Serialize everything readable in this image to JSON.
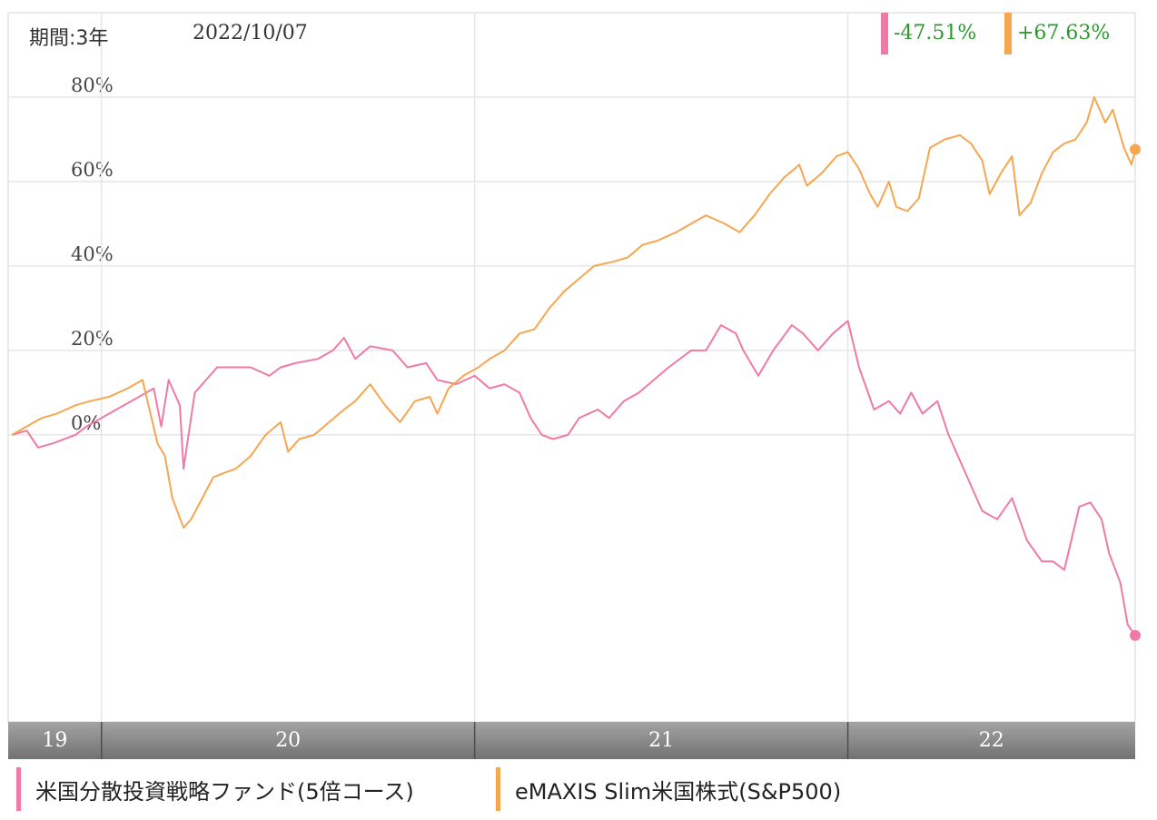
{
  "header": {
    "period": "期間:3年",
    "date": "2022/10/07"
  },
  "changes": [
    {
      "label": "-47.51%",
      "color": "#f07aa6"
    },
    {
      "label": "+67.63%",
      "color": "#f7a650"
    }
  ],
  "legend": [
    {
      "label": "米国分散投資戦略ファンド(5倍コース)",
      "color": "#f07aa6"
    },
    {
      "label": "eMAXIS Slim米国株式(S&P500)",
      "color": "#f7a650"
    }
  ],
  "chart_data": {
    "type": "line",
    "title": "",
    "xlabel": "",
    "ylabel": "",
    "x_range": [
      2019.75,
      2022.77
    ],
    "ylim": [
      -68,
      100
    ],
    "y_ticks": [
      {
        "value": 80,
        "label": "80%"
      },
      {
        "value": 60,
        "label": "60%"
      },
      {
        "value": 40,
        "label": "40%"
      },
      {
        "value": 20,
        "label": "20%"
      },
      {
        "value": 0,
        "label": "0%"
      }
    ],
    "x_bands": [
      {
        "label": "19",
        "from": 2019.75,
        "to": 2020.0
      },
      {
        "label": "20",
        "from": 2020.0,
        "to": 2021.0
      },
      {
        "label": "21",
        "from": 2021.0,
        "to": 2022.0
      },
      {
        "label": "22",
        "from": 2022.0,
        "to": 2022.77
      }
    ],
    "grid": true,
    "series": [
      {
        "name": "米国分散投資戦略ファンド(5倍コース)",
        "color": "#f07aa6",
        "points": [
          [
            2019.76,
            0
          ],
          [
            2019.8,
            1
          ],
          [
            2019.83,
            -3
          ],
          [
            2019.87,
            -2
          ],
          [
            2019.93,
            0
          ],
          [
            2019.96,
            2
          ],
          [
            2020.02,
            5
          ],
          [
            2020.08,
            8
          ],
          [
            2020.14,
            11
          ],
          [
            2020.16,
            2
          ],
          [
            2020.18,
            13
          ],
          [
            2020.21,
            7
          ],
          [
            2020.22,
            -8
          ],
          [
            2020.25,
            10
          ],
          [
            2020.31,
            16
          ],
          [
            2020.35,
            16
          ],
          [
            2020.4,
            16
          ],
          [
            2020.45,
            14
          ],
          [
            2020.48,
            16
          ],
          [
            2020.52,
            17
          ],
          [
            2020.58,
            18
          ],
          [
            2020.62,
            20
          ],
          [
            2020.65,
            23
          ],
          [
            2020.68,
            18
          ],
          [
            2020.72,
            21
          ],
          [
            2020.78,
            20
          ],
          [
            2020.82,
            16
          ],
          [
            2020.87,
            17
          ],
          [
            2020.9,
            13
          ],
          [
            2020.95,
            12
          ],
          [
            2021.0,
            14
          ],
          [
            2021.04,
            11
          ],
          [
            2021.08,
            12
          ],
          [
            2021.12,
            10
          ],
          [
            2021.15,
            4
          ],
          [
            2021.18,
            0
          ],
          [
            2021.21,
            -1
          ],
          [
            2021.25,
            0
          ],
          [
            2021.28,
            4
          ],
          [
            2021.33,
            6
          ],
          [
            2021.36,
            4
          ],
          [
            2021.4,
            8
          ],
          [
            2021.44,
            10
          ],
          [
            2021.48,
            13
          ],
          [
            2021.52,
            16
          ],
          [
            2021.58,
            20
          ],
          [
            2021.62,
            20
          ],
          [
            2021.66,
            26
          ],
          [
            2021.7,
            24
          ],
          [
            2021.72,
            20
          ],
          [
            2021.76,
            14
          ],
          [
            2021.8,
            20
          ],
          [
            2021.85,
            26
          ],
          [
            2021.88,
            24
          ],
          [
            2021.92,
            20
          ],
          [
            2021.96,
            24
          ],
          [
            2022.0,
            27
          ],
          [
            2022.03,
            16
          ],
          [
            2022.07,
            6
          ],
          [
            2022.11,
            8
          ],
          [
            2022.14,
            5
          ],
          [
            2022.17,
            10
          ],
          [
            2022.2,
            5
          ],
          [
            2022.24,
            8
          ],
          [
            2022.27,
            0
          ],
          [
            2022.32,
            -10
          ],
          [
            2022.36,
            -18
          ],
          [
            2022.4,
            -20
          ],
          [
            2022.44,
            -15
          ],
          [
            2022.48,
            -25
          ],
          [
            2022.52,
            -30
          ],
          [
            2022.55,
            -30
          ],
          [
            2022.58,
            -32
          ],
          [
            2022.62,
            -17
          ],
          [
            2022.65,
            -16
          ],
          [
            2022.68,
            -20
          ],
          [
            2022.7,
            -28
          ],
          [
            2022.73,
            -35
          ],
          [
            2022.75,
            -45
          ],
          [
            2022.77,
            -47.51
          ]
        ]
      },
      {
        "name": "eMAXIS Slim米国株式(S&P500)",
        "color": "#f7a650",
        "points": [
          [
            2019.76,
            0
          ],
          [
            2019.8,
            2
          ],
          [
            2019.84,
            4
          ],
          [
            2019.88,
            5
          ],
          [
            2019.93,
            7
          ],
          [
            2019.97,
            8
          ],
          [
            2020.02,
            9
          ],
          [
            2020.07,
            11
          ],
          [
            2020.11,
            13
          ],
          [
            2020.15,
            -2
          ],
          [
            2020.17,
            -5
          ],
          [
            2020.19,
            -15
          ],
          [
            2020.22,
            -22
          ],
          [
            2020.24,
            -20
          ],
          [
            2020.27,
            -15
          ],
          [
            2020.3,
            -10
          ],
          [
            2020.33,
            -9
          ],
          [
            2020.36,
            -8
          ],
          [
            2020.4,
            -5
          ],
          [
            2020.44,
            0
          ],
          [
            2020.48,
            3
          ],
          [
            2020.5,
            -4
          ],
          [
            2020.53,
            -1
          ],
          [
            2020.57,
            0
          ],
          [
            2020.61,
            3
          ],
          [
            2020.65,
            6
          ],
          [
            2020.68,
            8
          ],
          [
            2020.72,
            12
          ],
          [
            2020.76,
            7
          ],
          [
            2020.8,
            3
          ],
          [
            2020.84,
            8
          ],
          [
            2020.88,
            9
          ],
          [
            2020.9,
            5
          ],
          [
            2020.93,
            11
          ],
          [
            2020.97,
            14
          ],
          [
            2021.01,
            16
          ],
          [
            2021.04,
            18
          ],
          [
            2021.08,
            20
          ],
          [
            2021.12,
            24
          ],
          [
            2021.16,
            25
          ],
          [
            2021.2,
            30
          ],
          [
            2021.24,
            34
          ],
          [
            2021.28,
            37
          ],
          [
            2021.32,
            40
          ],
          [
            2021.37,
            41
          ],
          [
            2021.41,
            42
          ],
          [
            2021.45,
            45
          ],
          [
            2021.49,
            46
          ],
          [
            2021.54,
            48
          ],
          [
            2021.58,
            50
          ],
          [
            2021.62,
            52
          ],
          [
            2021.67,
            50
          ],
          [
            2021.71,
            48
          ],
          [
            2021.75,
            52
          ],
          [
            2021.79,
            57
          ],
          [
            2021.83,
            61
          ],
          [
            2021.87,
            64
          ],
          [
            2021.89,
            59
          ],
          [
            2021.93,
            62
          ],
          [
            2021.97,
            66
          ],
          [
            2022.0,
            67
          ],
          [
            2022.03,
            63
          ],
          [
            2022.06,
            57
          ],
          [
            2022.08,
            54
          ],
          [
            2022.11,
            60
          ],
          [
            2022.13,
            54
          ],
          [
            2022.16,
            53
          ],
          [
            2022.19,
            56
          ],
          [
            2022.22,
            68
          ],
          [
            2022.26,
            70
          ],
          [
            2022.3,
            71
          ],
          [
            2022.33,
            69
          ],
          [
            2022.36,
            65
          ],
          [
            2022.38,
            57
          ],
          [
            2022.41,
            62
          ],
          [
            2022.44,
            66
          ],
          [
            2022.46,
            52
          ],
          [
            2022.49,
            55
          ],
          [
            2022.52,
            62
          ],
          [
            2022.55,
            67
          ],
          [
            2022.58,
            69
          ],
          [
            2022.61,
            70
          ],
          [
            2022.64,
            74
          ],
          [
            2022.66,
            80
          ],
          [
            2022.69,
            74
          ],
          [
            2022.71,
            77
          ],
          [
            2022.74,
            68
          ],
          [
            2022.76,
            64
          ],
          [
            2022.77,
            67.63
          ]
        ]
      }
    ]
  }
}
